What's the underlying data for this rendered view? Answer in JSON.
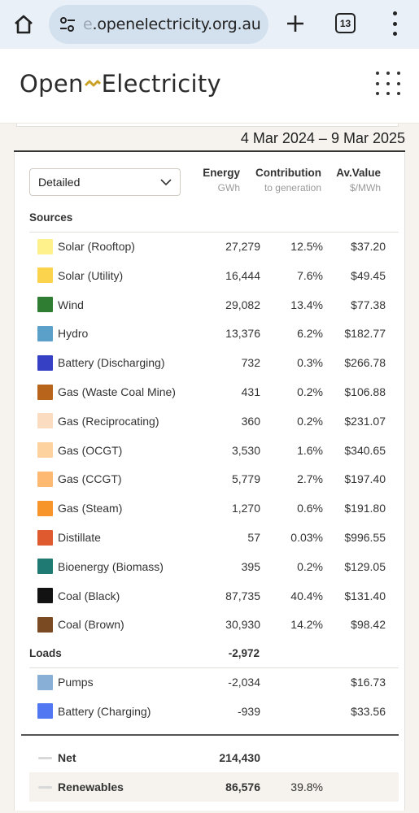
{
  "browser": {
    "url_faded": "e",
    "url_text": ".openelectricity.org.au",
    "tab_count": "13"
  },
  "site": {
    "logo_left": "Open",
    "logo_right": "Electricity"
  },
  "date_range": "4 Mar 2024 – 9 Mar 2025",
  "view_select": {
    "value": "Detailed"
  },
  "columns": {
    "energy": {
      "title": "Energy",
      "unit": "GWh"
    },
    "contribution": {
      "title": "Contribution",
      "unit": "to generation"
    },
    "value": {
      "title": "Av.Value",
      "unit": "$/MWh"
    }
  },
  "sources_label": "Sources",
  "sources": [
    {
      "name": "Solar (Rooftop)",
      "color": "#fef08a",
      "energy": "27,279",
      "contribution": "12.5%",
      "value": "$37.20"
    },
    {
      "name": "Solar (Utility)",
      "color": "#fcd34d",
      "energy": "16,444",
      "contribution": "7.6%",
      "value": "$49.45"
    },
    {
      "name": "Wind",
      "color": "#2f7d32",
      "energy": "29,082",
      "contribution": "13.4%",
      "value": "$77.38"
    },
    {
      "name": "Hydro",
      "color": "#5aa0c8",
      "energy": "13,376",
      "contribution": "6.2%",
      "value": "$182.77"
    },
    {
      "name": "Battery (Discharging)",
      "color": "#3540c4",
      "energy": "732",
      "contribution": "0.3%",
      "value": "$266.78"
    },
    {
      "name": "Gas (Waste Coal Mine)",
      "color": "#b8651b",
      "energy": "431",
      "contribution": "0.2%",
      "value": "$106.88"
    },
    {
      "name": "Gas (Reciprocating)",
      "color": "#fbdcc0",
      "energy": "360",
      "contribution": "0.2%",
      "value": "$231.07"
    },
    {
      "name": "Gas (OCGT)",
      "color": "#fdd29e",
      "energy": "3,530",
      "contribution": "1.6%",
      "value": "$340.65"
    },
    {
      "name": "Gas (CCGT)",
      "color": "#fdb872",
      "energy": "5,779",
      "contribution": "2.7%",
      "value": "$197.40"
    },
    {
      "name": "Gas (Steam)",
      "color": "#f7952a",
      "energy": "1,270",
      "contribution": "0.6%",
      "value": "$191.80"
    },
    {
      "name": "Distillate",
      "color": "#e05a30",
      "energy": "57",
      "contribution": "0.03%",
      "value": "$996.55"
    },
    {
      "name": "Bioenergy (Biomass)",
      "color": "#1e7a72",
      "energy": "395",
      "contribution": "0.2%",
      "value": "$129.05"
    },
    {
      "name": "Coal (Black)",
      "color": "#121212",
      "energy": "87,735",
      "contribution": "40.4%",
      "value": "$131.40"
    },
    {
      "name": "Coal (Brown)",
      "color": "#7a4a22",
      "energy": "30,930",
      "contribution": "14.2%",
      "value": "$98.42"
    }
  ],
  "loads_label": "Loads",
  "loads_total": "-2,972",
  "loads": [
    {
      "name": "Pumps",
      "color": "#88b0d6",
      "energy": "-2,034",
      "contribution": "",
      "value": "$16.73"
    },
    {
      "name": "Battery (Charging)",
      "color": "#5277f2",
      "energy": "-939",
      "contribution": "",
      "value": "$33.56"
    }
  ],
  "net": {
    "label": "Net",
    "energy": "214,430"
  },
  "renewables": {
    "label": "Renewables",
    "energy": "86,576",
    "contribution": "39.8%"
  }
}
